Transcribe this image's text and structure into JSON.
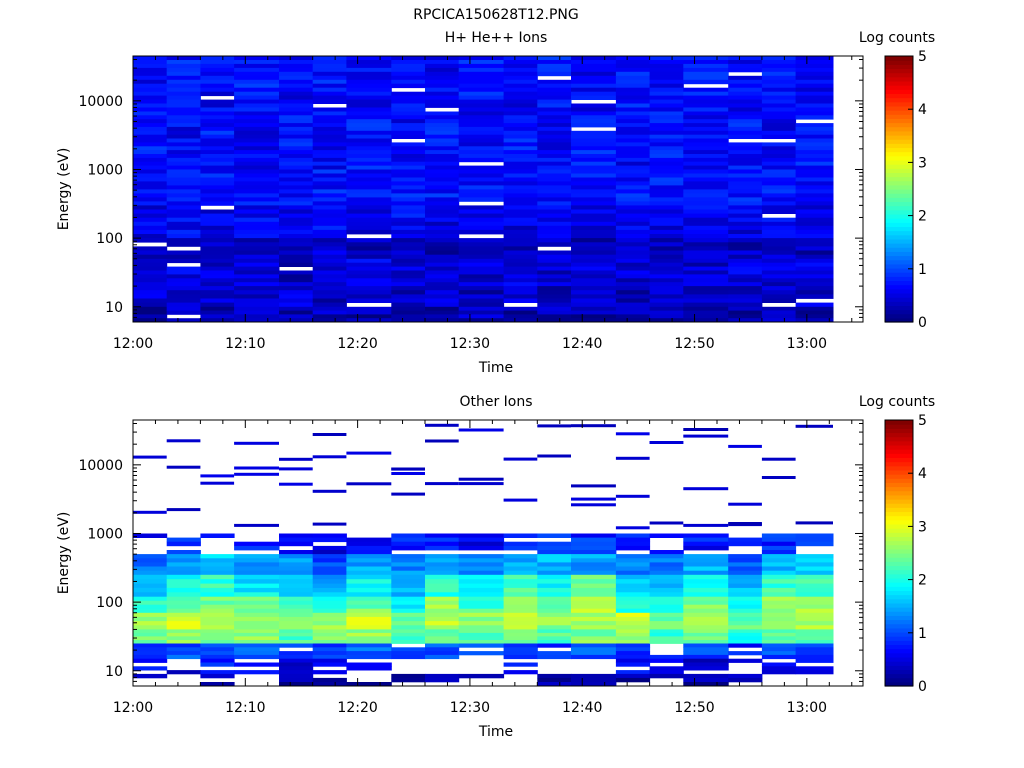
{
  "figure_title": "RPCICA150628T12.PNG",
  "chart_data": [
    {
      "type": "heatmap",
      "title": "H+ He++ Ions",
      "xlabel": "Time",
      "ylabel": "Energy (eV)",
      "y_scale": "log",
      "ylim": [
        6,
        45000
      ],
      "xlim": [
        "12:00",
        "13:05"
      ],
      "x_ticks": [
        "12:00",
        "12:10",
        "12:20",
        "12:30",
        "12:40",
        "12:50",
        "13:00"
      ],
      "y_ticks": [
        "10",
        "100",
        "1000",
        "10000"
      ],
      "time_bins": [
        "12:00",
        "12:03",
        "12:06",
        "12:09",
        "12:13",
        "12:16",
        "12:19",
        "12:23",
        "12:26",
        "12:29",
        "12:33",
        "12:36",
        "12:39",
        "12:43",
        "12:46",
        "12:49",
        "12:53",
        "12:56",
        "12:59"
      ],
      "energy_bands_eV": [
        45000,
        7000,
        1000,
        300,
        100,
        50,
        20,
        10,
        6
      ],
      "band_log_counts_by_time": [
        [
          0.6,
          0.7,
          0.6,
          0.7,
          0.6,
          0.7,
          0.6,
          0.7,
          0.6,
          0.7,
          0.6,
          0.7,
          0.6,
          0.7,
          0.6,
          0.7,
          0.6,
          0.7,
          0.6
        ],
        [
          0.7,
          0.6,
          0.7,
          0.6,
          0.7,
          0.6,
          0.7,
          0.6,
          0.7,
          0.6,
          0.7,
          0.6,
          0.7,
          0.6,
          0.7,
          0.6,
          0.7,
          0.6,
          0.7
        ],
        [
          0.7,
          0.7,
          0.7,
          0.7,
          0.7,
          0.7,
          0.7,
          0.7,
          0.7,
          0.7,
          0.7,
          0.7,
          0.7,
          0.7,
          0.7,
          0.7,
          0.7,
          0.7,
          0.7
        ],
        [
          0.5,
          0.6,
          0.5,
          0.6,
          0.5,
          0.6,
          0.5,
          0.6,
          0.5,
          0.6,
          0.5,
          0.6,
          0.5,
          0.6,
          0.5,
          0.6,
          0.5,
          0.6,
          0.5
        ],
        [
          0.3,
          0.4,
          0.3,
          0.4,
          0.3,
          0.4,
          0.3,
          0.4,
          0.3,
          0.4,
          0.3,
          0.4,
          0.3,
          0.4,
          0.3,
          0.4,
          0.3,
          0.4,
          0.3
        ],
        [
          0.4,
          0.5,
          0.4,
          0.5,
          0.3,
          0.4,
          0.5,
          0.4,
          0.5,
          0.4,
          0.5,
          0.4,
          0.5,
          0.4,
          0.5,
          0.4,
          0.5,
          0.4,
          0.5
        ],
        [
          0.4,
          0.3,
          0.4,
          0.3,
          0.4,
          0.3,
          0.4,
          0.3,
          0.4,
          0.3,
          0.4,
          0.3,
          0.4,
          0.3,
          0.4,
          0.3,
          0.4,
          0.3,
          0.4
        ],
        [
          0.2,
          0.3,
          0.2,
          0.3,
          0.2,
          0.3,
          0.2,
          0.3,
          0.2,
          0.3,
          0.2,
          0.3,
          0.2,
          0.3,
          0.2,
          0.3,
          0.2,
          0.3,
          0.2
        ]
      ],
      "colorbar": {
        "label": "Log counts",
        "min": 0,
        "max": 5,
        "ticks": [
          "0",
          "1",
          "2",
          "3",
          "4",
          "5"
        ]
      }
    },
    {
      "type": "heatmap",
      "title": "Other Ions",
      "xlabel": "Time",
      "ylabel": "Energy (eV)",
      "y_scale": "log",
      "ylim": [
        6,
        45000
      ],
      "xlim": [
        "12:00",
        "13:05"
      ],
      "x_ticks": [
        "12:00",
        "12:10",
        "12:20",
        "12:30",
        "12:40",
        "12:50",
        "13:00"
      ],
      "y_ticks": [
        "10",
        "100",
        "1000",
        "10000"
      ],
      "time_bins": [
        "12:00",
        "12:03",
        "12:06",
        "12:09",
        "12:13",
        "12:16",
        "12:19",
        "12:23",
        "12:26",
        "12:29",
        "12:33",
        "12:36",
        "12:39",
        "12:43",
        "12:46",
        "12:49",
        "12:53",
        "12:56",
        "12:59"
      ],
      "energy_bands_eV": [
        1000,
        500,
        250,
        120,
        70,
        40,
        25,
        15,
        9,
        6
      ],
      "band_log_counts_by_time": [
        [
          0.7,
          0.8,
          0.9,
          0.7,
          0.6,
          0.5,
          0.6,
          0.7,
          0.8,
          0.6,
          0.7,
          0.9,
          0.8,
          0.7,
          0.6,
          0.7,
          0.6,
          0.8,
          0.9
        ],
        [
          1.2,
          1.4,
          1.6,
          1.4,
          1.3,
          1.0,
          1.4,
          1.3,
          1.5,
          1.2,
          1.4,
          1.5,
          1.4,
          1.3,
          1.2,
          1.5,
          1.1,
          1.6,
          1.7
        ],
        [
          1.7,
          1.9,
          2.1,
          1.8,
          1.7,
          1.5,
          1.9,
          1.6,
          2.1,
          1.8,
          2.2,
          1.9,
          2.3,
          1.6,
          1.5,
          2.0,
          1.5,
          2.2,
          2.3
        ],
        [
          2.2,
          2.4,
          2.5,
          2.3,
          2.2,
          2.1,
          2.4,
          1.9,
          2.6,
          2.2,
          2.5,
          2.3,
          2.7,
          2.0,
          1.9,
          2.5,
          1.9,
          2.6,
          2.6
        ],
        [
          2.6,
          3.0,
          2.8,
          2.7,
          2.6,
          2.7,
          2.9,
          2.4,
          2.8,
          2.6,
          2.7,
          2.6,
          2.8,
          2.9,
          2.4,
          2.8,
          2.3,
          2.7,
          2.7
        ],
        [
          2.4,
          2.6,
          2.5,
          2.5,
          2.3,
          2.4,
          2.6,
          2.2,
          2.5,
          2.2,
          2.4,
          2.3,
          2.5,
          2.6,
          2.2,
          2.5,
          2.1,
          2.4,
          2.4
        ],
        [
          0.9,
          1.0,
          1.0,
          1.1,
          0.9,
          1.0,
          1.1,
          0.9,
          1.0,
          0.9,
          1.0,
          0.9,
          1.0,
          0.9,
          0.8,
          1.0,
          0.8,
          1.0,
          1.0
        ],
        [
          0.7,
          0.2,
          0.8,
          0.7,
          0.5,
          0.6,
          0.7,
          0.0,
          0.0,
          0.0,
          0.7,
          0.0,
          0.0,
          0.6,
          0.5,
          0.4,
          0.6,
          0.5,
          0.6
        ],
        [
          0.3,
          0.0,
          0.3,
          0.0,
          0.2,
          0.2,
          0.2,
          0.2,
          0.2,
          0.2,
          0.0,
          0.2,
          0.2,
          0.2,
          0.2,
          0.2,
          0.3,
          0.0,
          0.0
        ]
      ],
      "colorbar": {
        "label": "Log counts",
        "min": 0,
        "max": 5,
        "ticks": [
          "0",
          "1",
          "2",
          "3",
          "4",
          "5"
        ]
      }
    }
  ]
}
